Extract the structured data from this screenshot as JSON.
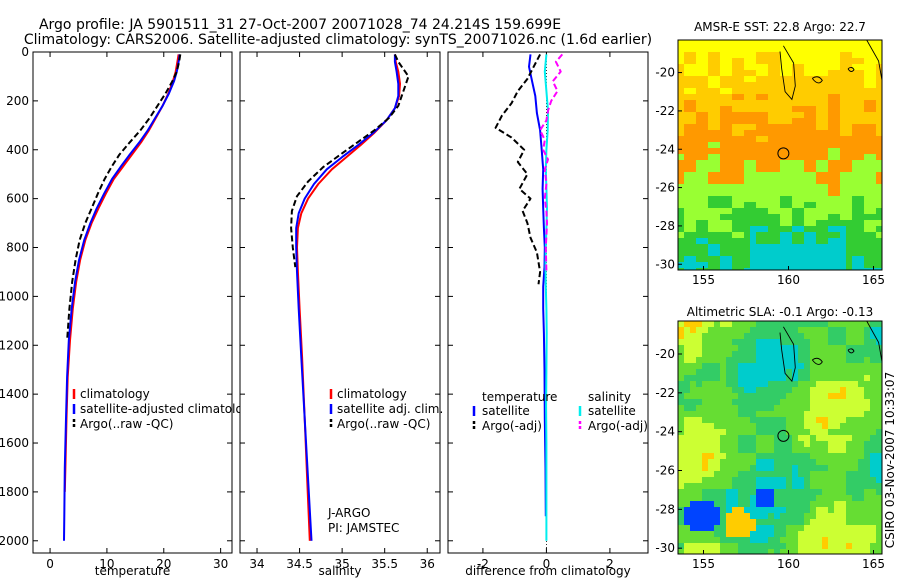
{
  "header": {
    "line1": "Argo profile: JA 5901511_31 27-Oct-2007 20071028_74 24.214S 159.699E",
    "line2": "Climatology: CARS2006. Satellite-adjusted climatology: synTS_20071026.nc (1.6d earlier)"
  },
  "side_note": "CSIRO 03-Nov-2007 10:33:07",
  "chart_data": [
    {
      "type": "line",
      "id": "temperature",
      "xlabel": "temperature",
      "ylabel": "",
      "xlim": [
        -3,
        32
      ],
      "ylim": [
        2050,
        0
      ],
      "xticks": [
        0,
        10,
        20,
        30
      ],
      "yticks": [
        0,
        200,
        400,
        600,
        800,
        1000,
        1200,
        1400,
        1600,
        1800,
        2000
      ],
      "legend": {
        "position": "bottom",
        "entries": [
          "climatology",
          "satellite-adjusted climatolog",
          "Argo(..raw -QC)"
        ]
      },
      "series": [
        {
          "name": "climatology",
          "color": "#ff0000",
          "style": "solid",
          "x": [
            22.6,
            22.4,
            22.1,
            21.6,
            20.8,
            19.8,
            18.6,
            17.4,
            16.0,
            14.4,
            12.8,
            11.2,
            9.8,
            8.5,
            7.3,
            6.2,
            5.3,
            4.6,
            4.0,
            3.5,
            3.1,
            2.9,
            2.7,
            2.6
          ],
          "y": [
            10,
            40,
            80,
            120,
            170,
            220,
            270,
            320,
            370,
            420,
            470,
            520,
            580,
            640,
            700,
            770,
            850,
            940,
            1050,
            1180,
            1330,
            1500,
            1700,
            1800
          ]
        },
        {
          "name": "satellite-adjusted climatology",
          "color": "#0000ff",
          "style": "solid",
          "x": [
            22.8,
            22.6,
            22.3,
            21.8,
            20.9,
            19.8,
            18.5,
            17.2,
            15.7,
            14.0,
            12.4,
            10.9,
            9.5,
            8.2,
            7.1,
            6.0,
            5.1,
            4.4,
            3.8,
            3.3,
            3.0,
            2.8,
            2.6,
            2.5,
            2.45
          ],
          "y": [
            10,
            40,
            80,
            120,
            170,
            220,
            270,
            320,
            370,
            420,
            470,
            520,
            580,
            640,
            700,
            770,
            850,
            940,
            1050,
            1180,
            1330,
            1500,
            1700,
            1900,
            2000
          ]
        },
        {
          "name": "Argo(..raw -QC)",
          "color": "#000000",
          "style": "dash",
          "x": [
            22.9,
            22.7,
            22.3,
            21.5,
            20.3,
            18.9,
            17.5,
            15.9,
            14.0,
            12.2,
            10.8,
            9.6,
            8.4,
            7.3,
            6.2,
            5.2,
            4.5,
            3.9,
            3.4,
            3.0
          ],
          "y": [
            10,
            40,
            80,
            120,
            170,
            220,
            270,
            320,
            370,
            420,
            470,
            520,
            580,
            640,
            700,
            770,
            850,
            940,
            1050,
            1180
          ]
        }
      ]
    },
    {
      "type": "line",
      "id": "salinity",
      "xlabel": "salinity",
      "ylabel": "",
      "xlim": [
        33.8,
        36.15
      ],
      "ylim": [
        2050,
        0
      ],
      "xticks": [
        34,
        34.5,
        35,
        35.5,
        36
      ],
      "xticklabels": [
        "34",
        "34.5",
        "35",
        "35.5",
        "36"
      ],
      "legend": {
        "position": "bottom",
        "entries": [
          "climatology",
          "satellite adj. clim.",
          "Argo(..raw -QC)"
        ]
      },
      "annotation": {
        "line1": "J-ARGO",
        "line2": "PI: JAMSTEC"
      },
      "series": [
        {
          "name": "climatology",
          "color": "#ff0000",
          "style": "solid",
          "x": [
            35.62,
            35.63,
            35.66,
            35.68,
            35.67,
            35.62,
            35.52,
            35.38,
            35.22,
            35.05,
            34.88,
            34.72,
            34.6,
            34.52,
            34.48,
            34.47,
            34.48,
            34.5,
            34.53,
            34.56,
            34.59,
            34.62
          ],
          "y": [
            10,
            40,
            80,
            130,
            180,
            230,
            280,
            330,
            380,
            430,
            480,
            540,
            600,
            660,
            720,
            800,
            900,
            1050,
            1250,
            1500,
            1750,
            2000
          ]
        },
        {
          "name": "satellite adj. clim.",
          "color": "#0000ff",
          "style": "solid",
          "x": [
            35.62,
            35.62,
            35.64,
            35.66,
            35.66,
            35.62,
            35.52,
            35.37,
            35.19,
            35.0,
            34.82,
            34.67,
            34.56,
            34.49,
            34.46,
            34.46,
            34.47,
            34.49,
            34.52,
            34.56,
            34.6,
            34.64
          ],
          "y": [
            10,
            40,
            80,
            130,
            180,
            230,
            280,
            330,
            380,
            430,
            480,
            540,
            600,
            660,
            720,
            800,
            900,
            1050,
            1250,
            1500,
            1750,
            2000
          ]
        },
        {
          "name": "Argo(..raw -QC)",
          "color": "#000000",
          "style": "dash",
          "x": [
            35.62,
            35.66,
            35.72,
            35.78,
            35.74,
            35.7,
            35.66,
            35.55,
            35.38,
            35.18,
            34.98,
            34.78,
            34.6,
            34.47,
            34.41,
            34.4,
            34.42,
            34.45
          ],
          "y": [
            10,
            40,
            70,
            100,
            140,
            180,
            220,
            270,
            320,
            370,
            420,
            470,
            530,
            590,
            650,
            720,
            800,
            880
          ]
        }
      ]
    },
    {
      "type": "line",
      "id": "difference",
      "xlabel": "difference from climatology",
      "ylabel": "",
      "xlim": [
        -3.1,
        3.2
      ],
      "ylim": [
        2050,
        0
      ],
      "xticks": [
        -2,
        0,
        2
      ],
      "legend": {
        "position": "bottom",
        "groups": [
          {
            "title": "temperature",
            "entries": [
              "satellite",
              "Argo(-adj)"
            ]
          },
          {
            "title": "salinity",
            "entries": [
              "satellite",
              "Argo(-adj)"
            ]
          }
        ]
      },
      "series": [
        {
          "name": "temperature satellite",
          "color": "#0000ff",
          "style": "solid",
          "x": [
            -0.5,
            -0.55,
            -0.45,
            -0.35,
            -0.3,
            -0.2,
            -0.15,
            -0.1,
            -0.12,
            -0.1,
            -0.08,
            -0.05,
            -0.06,
            -0.1,
            -0.1,
            -0.08,
            -0.06,
            -0.05,
            -0.03,
            -0.02
          ],
          "y": [
            10,
            60,
            120,
            180,
            250,
            320,
            400,
            480,
            560,
            640,
            720,
            800,
            880,
            960,
            1050,
            1150,
            1300,
            1500,
            1700,
            1900
          ]
        },
        {
          "name": "temperature Argo(-adj)",
          "color": "#000000",
          "style": "dash",
          "x": [
            -0.2,
            -0.4,
            -0.6,
            -0.9,
            -1.1,
            -1.4,
            -1.6,
            -1.1,
            -0.7,
            -0.9,
            -0.6,
            -0.85,
            -0.5,
            -0.75,
            -0.6,
            -0.5,
            -0.3,
            -0.2,
            -0.25
          ],
          "y": [
            10,
            60,
            110,
            160,
            210,
            260,
            310,
            350,
            400,
            450,
            500,
            560,
            600,
            650,
            700,
            760,
            820,
            900,
            950
          ]
        },
        {
          "name": "salinity satellite",
          "color": "#00eeee",
          "style": "solid",
          "x": [
            0.0,
            -0.05,
            0.0,
            0.05,
            0.04,
            0.0,
            -0.02,
            0.0,
            0.02,
            0.0,
            -0.02,
            -0.03,
            -0.02,
            0.0,
            0.01,
            0.0,
            -0.01,
            0.0,
            0.0,
            0.0
          ],
          "y": [
            10,
            80,
            160,
            240,
            320,
            400,
            480,
            560,
            640,
            720,
            800,
            880,
            960,
            1050,
            1150,
            1300,
            1450,
            1600,
            1800,
            2000
          ]
        },
        {
          "name": "salinity Argo(-adj)",
          "color": "#ff00ff",
          "style": "dash",
          "x": [
            0.5,
            0.3,
            0.45,
            0.2,
            0.35,
            0.15,
            0.05,
            0.0,
            -0.2,
            -0.05,
            -0.1,
            0.05,
            -0.05,
            0.0,
            -0.05,
            0.0,
            0.02,
            -0.02,
            0.0
          ],
          "y": [
            10,
            40,
            80,
            120,
            160,
            200,
            240,
            280,
            320,
            360,
            400,
            440,
            480,
            540,
            600,
            650,
            700,
            800,
            900
          ]
        }
      ]
    },
    {
      "type": "heatmap",
      "id": "sst_map",
      "title": "AMSR-E SST: 22.8 Argo: 22.7",
      "xlim": [
        153.5,
        165.5
      ],
      "ylim": [
        -30.3,
        -18.3
      ],
      "xticks": [
        155,
        160,
        165
      ],
      "yticks": [
        -20,
        -22,
        -24,
        -26,
        -28,
        -30
      ],
      "colormap": [
        "#ffff00",
        "#ffcc00",
        "#ff9900",
        "#99ff33",
        "#33cc33",
        "#00cccc"
      ],
      "argo_position": {
        "lon": 159.699,
        "lat": -24.214
      }
    },
    {
      "type": "heatmap",
      "id": "sla_map",
      "title": "Altimetric SLA: -0.1 Argo: -0.13",
      "xlim": [
        153.5,
        165.5
      ],
      "ylim": [
        -30.3,
        -18.3
      ],
      "xticks": [
        155,
        160,
        165
      ],
      "yticks": [
        -20,
        -22,
        -24,
        -26,
        -28,
        -30
      ],
      "colormap": [
        "#0044ff",
        "#00cccc",
        "#33cc66",
        "#66dd33",
        "#ccff33",
        "#ffcc00"
      ],
      "argo_position": {
        "lon": 159.699,
        "lat": -24.214
      }
    }
  ]
}
